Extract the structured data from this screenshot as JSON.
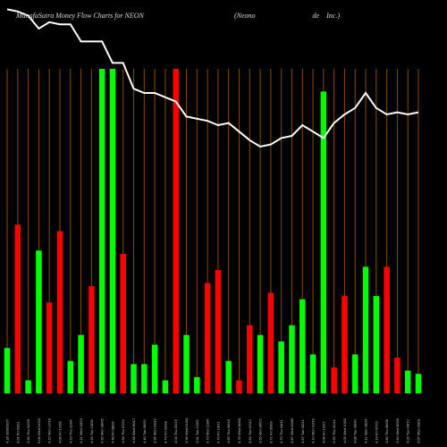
{
  "chart_data": {
    "type": "bar",
    "title": "MunafaSutra  Money Flow  Charts for NEON",
    "company": "(Neono                                de    Inc.)",
    "colors": {
      "up": "#00ff00",
      "down": "#ff0000",
      "grid": "#8a4a00",
      "line": "#ffffff",
      "background": "#000000"
    },
    "categories": [
      "4.28 2/06/2025",
      "3.61 Fri 03/21",
      "3.96 Thu 02/28",
      "5.06 Wed 01/15",
      "4.22 Mon 12/18",
      "4.08 Fri 12/06",
      "4.19 Thu 11/04",
      "4.11 Wed 10/23",
      "4.26 Tue 10/09",
      "4.32 Mon 09/05",
      "4.48 Fri 08/05",
      "4.58 Thu 07/22",
      "4.58 Wed 06/17",
      "4.40 Tue 05/20",
      "3.95 Mon 04/12",
      "3.74 Fri 03/28",
      "4.04 Thu 02/15",
      "3.96 Wed 01/04",
      "3.91 Tue 12/02",
      "3.73 Mon 11/06",
      "3.70 Fri 10/21",
      "3.65 Thu 09/18",
      "3.76 Wed 08/04",
      "3.62 Tue 07/13",
      "3.55 Mon 06/22",
      "3.71 Fri 05/03",
      "3.79 Thu 04/11",
      "3.87 Wed 03/09",
      "3.97 Tue 02/21",
      "4.10 Mon 01/19",
      "4.06 Fri 12/27",
      "3.95 Thu 11/14",
      "4.05 Wed 10/02",
      "4.08 Tue 09/30",
      "4.11 Mon 08/16",
      "4.14 Fri 07/29",
      "3.89 Thu 06/08",
      "3.94 Wed 05/25",
      "4.03 Tue 04/12",
      "4.07 Mon 03/01"
    ],
    "values": [
      0.14,
      0.52,
      0.04,
      0.44,
      0.28,
      0.5,
      0.1,
      0.18,
      0.33,
      1.0,
      1.0,
      0.43,
      0.09,
      0.09,
      0.15,
      0.04,
      1.0,
      0.18,
      0.05,
      0.34,
      0.38,
      0.1,
      0.04,
      0.21,
      0.18,
      0.31,
      0.16,
      0.21,
      0.29,
      0.12,
      0.93,
      0.08,
      0.3,
      0.12,
      0.39,
      0.3,
      0.39,
      0.11,
      0.07,
      0.06
    ],
    "directions": [
      "up",
      "down",
      "up",
      "up",
      "down",
      "down",
      "up",
      "up",
      "down",
      "up",
      "up",
      "down",
      "up",
      "up",
      "up",
      "up",
      "down",
      "up",
      "up",
      "down",
      "down",
      "up",
      "down",
      "down",
      "up",
      "down",
      "up",
      "up",
      "up",
      "up",
      "up",
      "down",
      "down",
      "up",
      "up",
      "up",
      "down",
      "down",
      "up",
      "up"
    ],
    "price_line": [
      0.99,
      0.98,
      0.96,
      0.9,
      0.93,
      0.92,
      0.92,
      0.84,
      0.84,
      0.84,
      0.74,
      0.74,
      0.62,
      0.6,
      0.6,
      0.58,
      0.56,
      0.49,
      0.48,
      0.47,
      0.45,
      0.46,
      0.42,
      0.38,
      0.35,
      0.36,
      0.39,
      0.4,
      0.45,
      0.42,
      0.39,
      0.46,
      0.5,
      0.53,
      0.6,
      0.53,
      0.5,
      0.51,
      0.5,
      0.51
    ],
    "ylim": [
      0,
      1
    ]
  }
}
